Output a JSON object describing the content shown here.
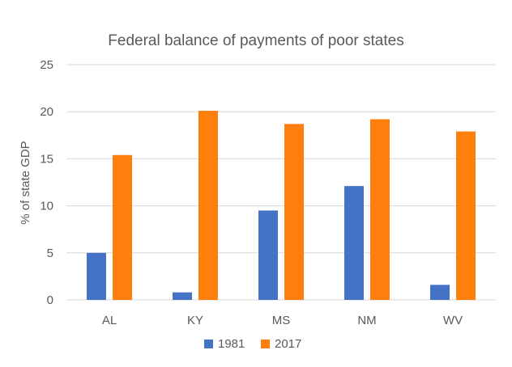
{
  "chart_data": {
    "type": "bar",
    "title": "Federal balance of payments of poor states",
    "xlabel": "",
    "ylabel": "% of state GDP",
    "ylim": [
      0,
      25
    ],
    "yticks": [
      0,
      5,
      10,
      15,
      20,
      25
    ],
    "grid": true,
    "legend": "bottom",
    "categories": [
      "AL",
      "KY",
      "MS",
      "NM",
      "WV"
    ],
    "series": [
      {
        "name": "1981",
        "color": "#4472c4",
        "values": [
          5.0,
          0.8,
          9.5,
          12.1,
          1.6
        ]
      },
      {
        "name": "2017",
        "color": "#ff7f0e",
        "values": [
          15.4,
          20.1,
          18.7,
          19.2,
          17.9
        ]
      }
    ]
  }
}
